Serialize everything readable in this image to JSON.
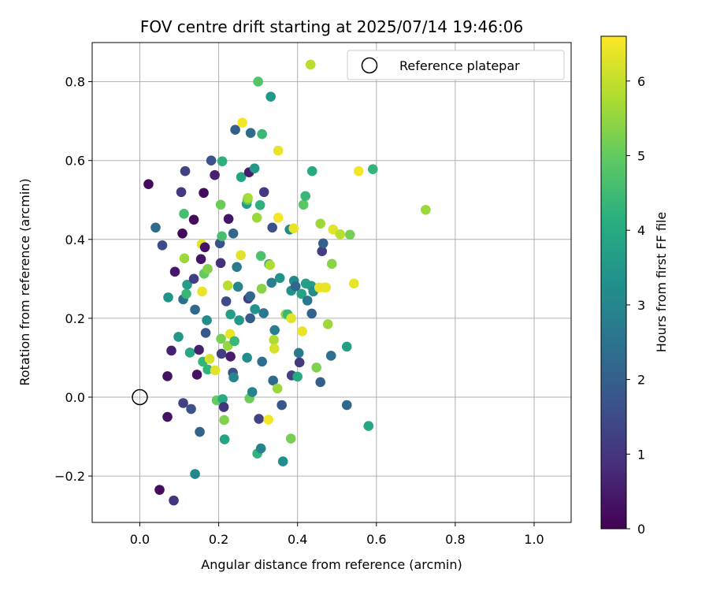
{
  "chart_data": {
    "type": "scatter",
    "title": "FOV centre drift starting at 2025/07/14 19:46:06",
    "xlabel": "Angular distance from reference (arcmin)",
    "ylabel": "Rotation from reference (arcmin)",
    "colorbar_label": "Hours from first FF file",
    "colormap": "viridis",
    "xlim": [
      -0.12,
      1.09
    ],
    "ylim": [
      -0.315,
      0.9
    ],
    "clim": [
      0,
      6.6
    ],
    "x_ticks": [
      0.0,
      0.2,
      0.4,
      0.6,
      0.8,
      1.0
    ],
    "x_tick_labels": [
      "0.0",
      "0.2",
      "0.4",
      "0.6",
      "0.8",
      "1.0"
    ],
    "y_ticks": [
      -0.2,
      0.0,
      0.2,
      0.4,
      0.6,
      0.8
    ],
    "y_tick_labels": [
      "−0.2",
      "0.0",
      "0.2",
      "0.4",
      "0.6",
      "0.8"
    ],
    "c_ticks": [
      0,
      1,
      2,
      3,
      4,
      5,
      6
    ],
    "c_tick_labels": [
      "0",
      "1",
      "2",
      "3",
      "4",
      "5",
      "6"
    ],
    "grid": true,
    "legend": {
      "position": "top-right",
      "entries": [
        {
          "label": "Reference platepar",
          "marker": "open-circle"
        }
      ]
    },
    "reference_point": {
      "x": 0.0,
      "y": 0.0
    },
    "points": [
      {
        "x": 0.022,
        "y": 0.54,
        "hours": 0.2
      },
      {
        "x": 0.04,
        "y": 0.43,
        "hours": 2.3
      },
      {
        "x": 0.05,
        "y": -0.235,
        "hours": 0.2
      },
      {
        "x": 0.057,
        "y": 0.385,
        "hours": 1.5
      },
      {
        "x": 0.07,
        "y": 0.053,
        "hours": 0.3
      },
      {
        "x": 0.07,
        "y": -0.05,
        "hours": 0.3
      },
      {
        "x": 0.072,
        "y": 0.253,
        "hours": 3.4
      },
      {
        "x": 0.08,
        "y": 0.118,
        "hours": 0.6
      },
      {
        "x": 0.086,
        "y": -0.262,
        "hours": 1.0
      },
      {
        "x": 0.089,
        "y": 0.318,
        "hours": 0.4
      },
      {
        "x": 0.098,
        "y": 0.153,
        "hours": 3.5
      },
      {
        "x": 0.105,
        "y": 0.52,
        "hours": 1.1
      },
      {
        "x": 0.108,
        "y": 0.415,
        "hours": 0.1
      },
      {
        "x": 0.11,
        "y": 0.248,
        "hours": 2.4
      },
      {
        "x": 0.11,
        "y": -0.015,
        "hours": 1.3
      },
      {
        "x": 0.112,
        "y": 0.465,
        "hours": 4.6
      },
      {
        "x": 0.113,
        "y": 0.352,
        "hours": 5.6
      },
      {
        "x": 0.115,
        "y": 0.573,
        "hours": 1.3
      },
      {
        "x": 0.118,
        "y": 0.262,
        "hours": 4.4
      },
      {
        "x": 0.12,
        "y": 0.285,
        "hours": 3.6
      },
      {
        "x": 0.127,
        "y": 0.113,
        "hours": 3.9
      },
      {
        "x": 0.13,
        "y": -0.03,
        "hours": 1.6
      },
      {
        "x": 0.137,
        "y": 0.45,
        "hours": 0.2
      },
      {
        "x": 0.137,
        "y": 0.3,
        "hours": 1.2
      },
      {
        "x": 0.14,
        "y": -0.195,
        "hours": 3.0
      },
      {
        "x": 0.14,
        "y": 0.222,
        "hours": 2.2
      },
      {
        "x": 0.145,
        "y": 0.057,
        "hours": 0.3
      },
      {
        "x": 0.15,
        "y": 0.12,
        "hours": 0.6
      },
      {
        "x": 0.152,
        "y": -0.088,
        "hours": 2.1
      },
      {
        "x": 0.155,
        "y": 0.35,
        "hours": 0.4
      },
      {
        "x": 0.157,
        "y": 0.388,
        "hours": 6.3
      },
      {
        "x": 0.158,
        "y": 0.268,
        "hours": 6.4
      },
      {
        "x": 0.16,
        "y": 0.09,
        "hours": 4.3
      },
      {
        "x": 0.162,
        "y": 0.518,
        "hours": 0.2
      },
      {
        "x": 0.163,
        "y": 0.313,
        "hours": 5.0
      },
      {
        "x": 0.165,
        "y": 0.38,
        "hours": 0.3
      },
      {
        "x": 0.167,
        "y": 0.163,
        "hours": 1.8
      },
      {
        "x": 0.17,
        "y": 0.195,
        "hours": 3.2
      },
      {
        "x": 0.172,
        "y": 0.07,
        "hours": 4.3
      },
      {
        "x": 0.172,
        "y": 0.325,
        "hours": 5.3
      },
      {
        "x": 0.177,
        "y": 0.097,
        "hours": 6.2
      },
      {
        "x": 0.181,
        "y": 0.6,
        "hours": 1.7
      },
      {
        "x": 0.19,
        "y": 0.563,
        "hours": 0.6
      },
      {
        "x": 0.191,
        "y": 0.068,
        "hours": 6.3
      },
      {
        "x": 0.195,
        "y": -0.008,
        "hours": 5.0
      },
      {
        "x": 0.203,
        "y": 0.39,
        "hours": 1.7
      },
      {
        "x": 0.205,
        "y": 0.34,
        "hours": 0.9
      },
      {
        "x": 0.205,
        "y": 0.488,
        "hours": 5.1
      },
      {
        "x": 0.206,
        "y": 0.148,
        "hours": 5.2
      },
      {
        "x": 0.207,
        "y": 0.11,
        "hours": 1.2
      },
      {
        "x": 0.208,
        "y": 0.408,
        "hours": 4.6
      },
      {
        "x": 0.209,
        "y": 0.598,
        "hours": 4.2
      },
      {
        "x": 0.21,
        "y": -0.005,
        "hours": 4.0
      },
      {
        "x": 0.213,
        "y": -0.025,
        "hours": 1.0
      },
      {
        "x": 0.214,
        "y": -0.058,
        "hours": 5.3
      },
      {
        "x": 0.215,
        "y": -0.107,
        "hours": 3.8
      },
      {
        "x": 0.219,
        "y": 0.243,
        "hours": 1.5
      },
      {
        "x": 0.223,
        "y": 0.283,
        "hours": 5.9
      },
      {
        "x": 0.223,
        "y": 0.13,
        "hours": 5.5
      },
      {
        "x": 0.225,
        "y": 0.452,
        "hours": 0.4
      },
      {
        "x": 0.229,
        "y": 0.16,
        "hours": 6.4
      },
      {
        "x": 0.23,
        "y": 0.103,
        "hours": 0.5
      },
      {
        "x": 0.23,
        "y": 0.21,
        "hours": 3.7
      },
      {
        "x": 0.236,
        "y": 0.062,
        "hours": 1.6
      },
      {
        "x": 0.237,
        "y": 0.415,
        "hours": 2.2
      },
      {
        "x": 0.238,
        "y": 0.05,
        "hours": 3.0
      },
      {
        "x": 0.24,
        "y": 0.142,
        "hours": 4.4
      },
      {
        "x": 0.242,
        "y": 0.678,
        "hours": 2.0
      },
      {
        "x": 0.246,
        "y": 0.33,
        "hours": 2.7
      },
      {
        "x": 0.249,
        "y": 0.28,
        "hours": 3.0
      },
      {
        "x": 0.252,
        "y": 0.195,
        "hours": 3.5
      },
      {
        "x": 0.256,
        "y": 0.36,
        "hours": 6.3
      },
      {
        "x": 0.257,
        "y": 0.558,
        "hours": 3.8
      },
      {
        "x": 0.26,
        "y": 0.696,
        "hours": 6.5
      },
      {
        "x": 0.271,
        "y": 0.49,
        "hours": 3.6
      },
      {
        "x": 0.272,
        "y": 0.1,
        "hours": 3.2
      },
      {
        "x": 0.273,
        "y": 0.5,
        "hours": 4.9
      },
      {
        "x": 0.274,
        "y": 0.505,
        "hours": 5.7
      },
      {
        "x": 0.275,
        "y": 0.25,
        "hours": 1.2
      },
      {
        "x": 0.277,
        "y": 0.57,
        "hours": 0.5
      },
      {
        "x": 0.278,
        "y": -0.003,
        "hours": 5.1
      },
      {
        "x": 0.28,
        "y": 0.2,
        "hours": 1.9
      },
      {
        "x": 0.28,
        "y": 0.256,
        "hours": 2.2
      },
      {
        "x": 0.281,
        "y": 0.67,
        "hours": 2.3
      },
      {
        "x": 0.285,
        "y": 0.013,
        "hours": 2.9
      },
      {
        "x": 0.291,
        "y": 0.58,
        "hours": 3.5
      },
      {
        "x": 0.292,
        "y": 0.223,
        "hours": 3.3
      },
      {
        "x": 0.297,
        "y": 0.455,
        "hours": 5.6
      },
      {
        "x": 0.298,
        "y": -0.143,
        "hours": 4.3
      },
      {
        "x": 0.3,
        "y": 0.8,
        "hours": 4.8
      },
      {
        "x": 0.302,
        "y": -0.055,
        "hours": 1.3
      },
      {
        "x": 0.305,
        "y": 0.487,
        "hours": 4.2
      },
      {
        "x": 0.307,
        "y": 0.358,
        "hours": 4.7
      },
      {
        "x": 0.307,
        "y": -0.13,
        "hours": 2.9
      },
      {
        "x": 0.309,
        "y": 0.275,
        "hours": 5.4
      },
      {
        "x": 0.31,
        "y": 0.667,
        "hours": 4.4
      },
      {
        "x": 0.31,
        "y": 0.09,
        "hours": 2.4
      },
      {
        "x": 0.314,
        "y": 0.213,
        "hours": 2.6
      },
      {
        "x": 0.315,
        "y": 0.52,
        "hours": 1.1
      },
      {
        "x": 0.326,
        "y": -0.057,
        "hours": 6.5
      },
      {
        "x": 0.328,
        "y": 0.337,
        "hours": 3.6
      },
      {
        "x": 0.33,
        "y": 0.335,
        "hours": 5.8
      },
      {
        "x": 0.332,
        "y": 0.762,
        "hours": 3.5
      },
      {
        "x": 0.334,
        "y": 0.29,
        "hours": 2.8
      },
      {
        "x": 0.336,
        "y": 0.43,
        "hours": 1.6
      },
      {
        "x": 0.338,
        "y": 0.042,
        "hours": 2.3
      },
      {
        "x": 0.34,
        "y": 0.145,
        "hours": 5.8
      },
      {
        "x": 0.341,
        "y": 0.123,
        "hours": 6.2
      },
      {
        "x": 0.342,
        "y": 0.17,
        "hours": 2.8
      },
      {
        "x": 0.349,
        "y": 0.022,
        "hours": 5.6
      },
      {
        "x": 0.351,
        "y": 0.625,
        "hours": 6.4
      },
      {
        "x": 0.351,
        "y": 0.455,
        "hours": 6.5
      },
      {
        "x": 0.355,
        "y": 0.302,
        "hours": 3.4
      },
      {
        "x": 0.36,
        "y": -0.02,
        "hours": 1.8
      },
      {
        "x": 0.363,
        "y": -0.163,
        "hours": 3.2
      },
      {
        "x": 0.37,
        "y": 0.21,
        "hours": 5.4
      },
      {
        "x": 0.375,
        "y": 0.21,
        "hours": 4.4
      },
      {
        "x": 0.38,
        "y": 0.425,
        "hours": 3.1
      },
      {
        "x": 0.383,
        "y": -0.105,
        "hours": 5.2
      },
      {
        "x": 0.384,
        "y": 0.27,
        "hours": 3.3
      },
      {
        "x": 0.384,
        "y": 0.2,
        "hours": 6.3
      },
      {
        "x": 0.385,
        "y": 0.055,
        "hours": 1.3
      },
      {
        "x": 0.39,
        "y": 0.428,
        "hours": 6.4
      },
      {
        "x": 0.391,
        "y": 0.295,
        "hours": 3.1
      },
      {
        "x": 0.395,
        "y": 0.281,
        "hours": 2.2
      },
      {
        "x": 0.4,
        "y": 0.052,
        "hours": 4.0
      },
      {
        "x": 0.403,
        "y": 0.112,
        "hours": 2.7
      },
      {
        "x": 0.405,
        "y": 0.088,
        "hours": 1.1
      },
      {
        "x": 0.41,
        "y": 0.262,
        "hours": 3.8
      },
      {
        "x": 0.412,
        "y": 0.167,
        "hours": 6.4
      },
      {
        "x": 0.415,
        "y": 0.488,
        "hours": 4.9
      },
      {
        "x": 0.42,
        "y": 0.51,
        "hours": 4.4
      },
      {
        "x": 0.421,
        "y": 0.288,
        "hours": 3.7
      },
      {
        "x": 0.425,
        "y": 0.245,
        "hours": 2.6
      },
      {
        "x": 0.435,
        "y": 0.282,
        "hours": 3.6
      },
      {
        "x": 0.436,
        "y": 0.212,
        "hours": 2.1
      },
      {
        "x": 0.437,
        "y": 0.573,
        "hours": 4.0
      },
      {
        "x": 0.44,
        "y": 0.268,
        "hours": 3.2
      },
      {
        "x": 0.448,
        "y": 0.075,
        "hours": 5.3
      },
      {
        "x": 0.455,
        "y": 0.278,
        "hours": 6.4
      },
      {
        "x": 0.458,
        "y": 0.44,
        "hours": 5.6
      },
      {
        "x": 0.458,
        "y": 0.038,
        "hours": 2.0
      },
      {
        "x": 0.462,
        "y": 0.37,
        "hours": 1.2
      },
      {
        "x": 0.465,
        "y": 0.39,
        "hours": 2.0
      },
      {
        "x": 0.468,
        "y": 0.278,
        "hours": 6.4
      },
      {
        "x": 0.472,
        "y": 0.278,
        "hours": 6.4
      },
      {
        "x": 0.477,
        "y": 0.185,
        "hours": 5.6
      },
      {
        "x": 0.485,
        "y": 0.105,
        "hours": 2.4
      },
      {
        "x": 0.487,
        "y": 0.338,
        "hours": 5.4
      },
      {
        "x": 0.49,
        "y": 0.425,
        "hours": 6.3
      },
      {
        "x": 0.508,
        "y": 0.413,
        "hours": 5.9
      },
      {
        "x": 0.525,
        "y": 0.128,
        "hours": 3.7
      },
      {
        "x": 0.525,
        "y": -0.02,
        "hours": 2.2
      },
      {
        "x": 0.533,
        "y": 0.412,
        "hours": 5.2
      },
      {
        "x": 0.543,
        "y": 0.288,
        "hours": 6.4
      },
      {
        "x": 0.555,
        "y": 0.573,
        "hours": 6.5
      },
      {
        "x": 0.58,
        "y": -0.073,
        "hours": 3.9
      },
      {
        "x": 0.591,
        "y": 0.578,
        "hours": 4.3
      },
      {
        "x": 0.725,
        "y": 0.475,
        "hours": 5.6
      },
      {
        "x": 0.433,
        "y": 0.843,
        "hours": 5.9
      }
    ]
  }
}
